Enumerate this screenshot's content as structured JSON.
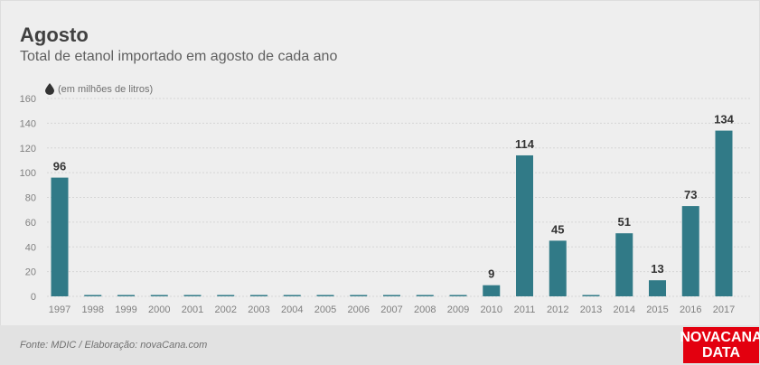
{
  "header": {
    "title": "Agosto",
    "subtitle": "Total de etanol importado em agosto de cada ano",
    "unit_label": "(em milhões de litros)"
  },
  "footer": {
    "source": "Fonte: MDIC / Elaboração: novaCana.com",
    "logo_line1": "NOVACANA",
    "logo_line2": "DATA"
  },
  "colors": {
    "bar": "#317a87",
    "grid": "#d6d6d6",
    "logo_bg": "#e3000f"
  },
  "chart_data": {
    "type": "bar",
    "title": "Agosto",
    "subtitle": "Total de etanol importado em agosto de cada ano",
    "ylabel": "(em milhões de litros)",
    "xlabel": "",
    "ylim": [
      0,
      160
    ],
    "yticks": [
      0,
      20,
      40,
      60,
      80,
      100,
      120,
      140,
      160
    ],
    "grid": true,
    "categories": [
      "1997",
      "1998",
      "1999",
      "2000",
      "2001",
      "2002",
      "2003",
      "2004",
      "2005",
      "2006",
      "2007",
      "2008",
      "2009",
      "2010",
      "2011",
      "2012",
      "2013",
      "2014",
      "2015",
      "2016",
      "2017"
    ],
    "values": [
      96,
      0,
      0,
      0,
      0,
      0,
      0,
      0,
      0,
      0,
      0,
      0,
      0,
      9,
      114,
      45,
      0,
      51,
      13,
      73,
      134
    ],
    "data_labels": [
      "96",
      "",
      "",
      "",
      "",
      "",
      "",
      "",
      "",
      "",
      "",
      "",
      "",
      "9",
      "114",
      "45",
      "",
      "51",
      "13",
      "73",
      "134"
    ]
  }
}
